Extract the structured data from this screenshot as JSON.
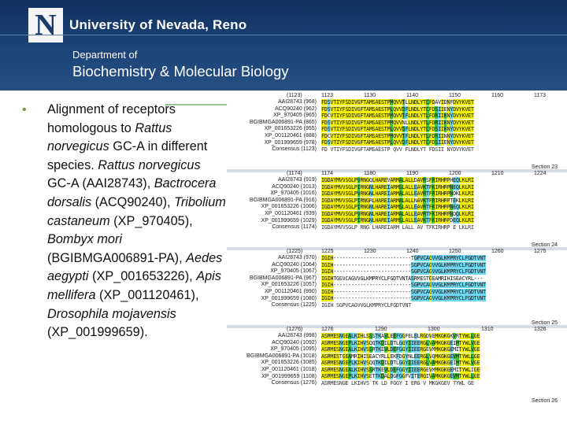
{
  "header": {
    "logo_letter": "N",
    "university": "University of Nevada, Reno",
    "department_line1": "Department of",
    "department_line2": "Biochemistry & Molecular Biology"
  },
  "bullet": {
    "marker": "•",
    "t1": "Alignment of receptors homologous to ",
    "t2": "Rattus norvegicus",
    "t3": " GC-A in different species. ",
    "t4": "Rattus norvegicus",
    "t5": " GC-A (AAI28743), ",
    "t6": "Bactrocera dorsalis",
    "t7": " (ACQ90240), ",
    "t8": "Tribolium castaneum",
    "t9": " (XP_970405), ",
    "t10": "Bombyx mori",
    "t11": " (BGIBMGA006891-PA), ",
    "t12": "Aedes aegypti",
    "t13": " (XP_001653226), ",
    "t14": "Apis mellifera",
    "t15": " (XP_001120461), ",
    "t16": "Drosophila mojavensis",
    "t17": " (XP_001999659)."
  },
  "alignment": {
    "colors": {
      "yellow": "#f4f000",
      "green": "#3ec43e",
      "cyan": "#6fd6f0",
      "white": "#ffffff"
    },
    "sections": [
      {
        "name": "Section 23",
        "start": "(1123)",
        "positions": [
          "1123",
          "1130",
          "1140",
          "1150",
          "1160",
          "1173"
        ],
        "labels": [
          "AAI28743 (968)",
          "ACQ90240 (962)",
          "XP_970405 (965)",
          "BGIBMGA006891-PA (865)",
          "XP_001653226 (955)",
          "XP_001120461 (888)",
          "XP_001999659 (978)",
          "Consensus (1123)"
        ],
        "seqs": [
          "FDSVTIYFSDIVGFTAMSAESTPMQVVTLLNDLYTCFDAVIDNFDVYKVET",
          "FDSVTIYFSDIVGFTAMSAESTPLQVVDFLNDLYTCFDSIIENYDVYKVET",
          "FDCVTIYFSDIVGFTAMSAESTPMQVVTFLNDLYTLFDRIIKNYDVYKVET",
          "FDSVTIYFSDIVGFTAMSAESTPMQVVNLLNDLYTLFDRIIKNYDVYKVET",
          "FDSVTIYFSDIVGFTAMSAESTPLQVVDFLNDLYTCFDSIIKNYDVYKVET",
          "FDCVTIYFSDIVGFTAMSAESTPMQVVTFLNDLYTLFDRIINNYDVYKVET",
          "FDSVTIYFSDIVGFTAMSAESTPLQVVDFLNDLYTCFDSIIENYDVYKVET",
          "FD VTIYFSDIVGFTAMSAESTP QVV  FLNDLYT FDSII NYDVYKVET"
        ]
      },
      {
        "name": "Section 24",
        "start": "(1174)",
        "positions": [
          "1174",
          "1180",
          "1190",
          "1200",
          "1210",
          "1224"
        ],
        "labels": [
          "AAI28743 (919)",
          "ACQ90240 (1013)",
          "XP_970405 (1016)",
          "BGIBMGA006891-PA (916)",
          "XP_001653226 (1006)",
          "XP_001120461 (939)",
          "XP_001999659 (1029)",
          "Consensus (1174)"
        ],
        "seqs": [
          "IGDAYMVVSGLPVRNGQLHAREVARMALALLDAVRSFRIRHRPHEQLKLRI",
          "IGDAYMVVSGLPIRNGNLHAREIARMSLALLEAVKTFKIRHRPNEQLKLRI",
          "IGDAYMVVSGLPVRNGNLHAREIARMALALLEAVRTFRIRHRPNDKLKLRI",
          "IGDAYMVVSGLPIRNGRLHAREIARMALALLNAVKTFRIRHRPTEKLKLRI",
          "IGDAYMVVSGLPIRNGNLHAREIARMSLALLEAVRTFKIRHRPNEQLKLRI",
          "IGDAYMVVSGLPVRNGNLHAREIARMALALLEAVRTFKIRHRPNDQLKLRI",
          "IGDAYMVVSGLPIRNGNLHAREIARMSLALLEAVKTFKIRHRPDEQLKLRI",
          "IGDAYMVVSGLP RNG LHAREIARM LALL AV TFKIRHRP E LKLRI"
        ]
      },
      {
        "name": "Section 25",
        "start": "(1225)",
        "positions": [
          "1225",
          "1230",
          "1240",
          "1250",
          "1260",
          "1275"
        ],
        "labels": [
          "AAI28743 (970)",
          "ACQ90240 (1064)",
          "XP_970405 (1067)",
          "BGIBMGA006891-PA (967)",
          "XP_001653226 (1057)",
          "XP_001120461 (990)",
          "XP_001999659 (1080)",
          "Consensus (1225)"
        ],
        "seqs": [
          "IGIH--------------------------TGPVCAGVVGLKMPRYCLFGDTVNT",
          "IGIH--------------------------SGPVCAGVVGLKMPRYCLFGDTVNT",
          "IGIH--------------------------SGPVCAGVVGLKMPRYCLFGDTVNT",
          "IGIHTGSVCAGVVGLKMPRYCLFGDTVNTASRMESTGEAMRIHISEACYRL---",
          "IGIH--------------------------SGPVCAGVVGLKMPRYCLFGDTVNT",
          "IGIH--------------------------SGPVCAGVVGLKMPRYCLFGDTVNT",
          "IGIH--------------------------SGPVCAGVVGLKMPRYCLFGDTVNT",
          "IGIH                          SGPVCAGVVGLKMPRYCLFGDTVNT"
        ]
      },
      {
        "name": "Section 26",
        "start": "(1276)",
        "positions": [
          "1276",
          "1290",
          "1300",
          "1310",
          "1326"
        ],
        "labels": [
          "AAI28743 (998)",
          "ACQ90240 (1092)",
          "XP_970405 (1095)",
          "BGIBMGA006891-PA (1018)",
          "XP_001653226 (1085)",
          "XP_001120461 (1018)",
          "XP_001999659 (1108)",
          "Consensus (1276)"
        ],
        "seqs": [
          "ASRMESNGEALKIHLSSSTKAVLEEFGGFELELRGDVEMKGKGKVRTYWLLGE",
          "ASRMESNGEPLKIHVSQQTKDILDTLGGYIIEERGLVAMKGKGEIMTYWLVGE",
          "ASRMESNGEALKIHVSSRTKEVLDEFGGYIIEERGEVMMKGKGEMITYWLVGE",
          "ASRMESTGEAMRIHISEACYRLLEKFDGYNLEERGLVQMKGKGEVMTYWLLGE",
          "ASRMESNGEPLKIHVSQQTKDILDTLGGYIIEERGLVAMKGKGEIMTYWLVGE",
          "ASRMESNGEALKIHVSSRTKEVLDEFGGYIIEERGEVMMKGKGEMITYWLIGE",
          "ASRMESNGEPLKIHVSETTKDALDGFGGFVITERGIVAMKGKGEVMTYWLLGE",
          "ASRMESNGE LKIHVS  TK  LD FGGY I ERG V MKGKGEV TYWL GE"
        ]
      }
    ]
  }
}
